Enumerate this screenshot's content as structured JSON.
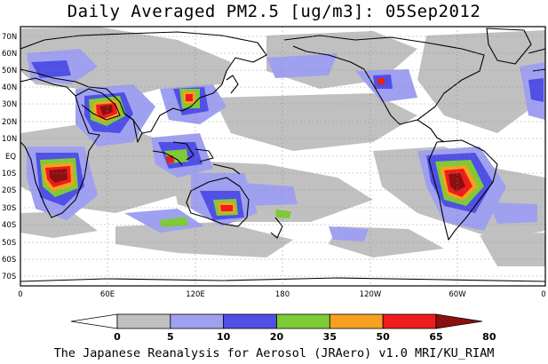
{
  "title": "Daily Averaged PM2.5 [ug/m3]: 05Sep2012",
  "footer": "The Japanese Reanalysis for Aerosol (JRAero) v1.0 MRI/KU_RIAM",
  "map": {
    "lat_labels": [
      "70N",
      "60N",
      "50N",
      "40N",
      "30N",
      "20N",
      "10N",
      "EQ",
      "10S",
      "20S",
      "30S",
      "40S",
      "50S",
      "60S",
      "70S"
    ],
    "lon_labels": [
      "0",
      "60E",
      "120E",
      "180",
      "120W",
      "60W",
      "0"
    ]
  },
  "colorbar": {
    "labels": [
      "0",
      "5",
      "10",
      "20",
      "35",
      "50",
      "65",
      "80"
    ],
    "colors": [
      "#ffffff",
      "#c0c0c0",
      "#a0a0f0",
      "#5050e6",
      "#7dcb37",
      "#f5a01e",
      "#ee1c1c",
      "#8c1010"
    ]
  }
}
